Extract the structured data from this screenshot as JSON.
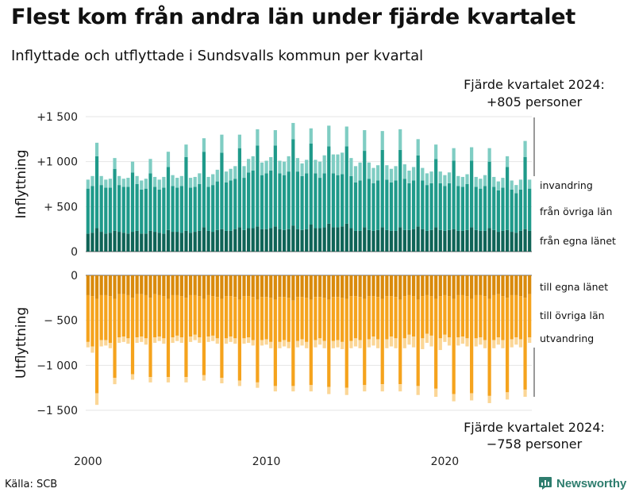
{
  "header": {
    "title": "Flest kom från andra län under fjärde kvartalet",
    "subtitle": "Inflyttade och utflyttade i Sundsvalls kommun per kvartal"
  },
  "footer": {
    "source": "Källa: SCB",
    "brand": "Newsworthy"
  },
  "chart_data": {
    "type": "bar",
    "stacked": true,
    "x_start": "2000 Q1",
    "x_ticks": [
      "2000",
      "2010",
      "2020"
    ],
    "top_panel": {
      "ylabel": "Inflyttning",
      "yticks": [
        "+1 500",
        "+1 000",
        "+ 500",
        "0"
      ],
      "tick_values": [
        1500,
        1000,
        500,
        0
      ],
      "ylim": [
        0,
        1500
      ],
      "callout": [
        "Fjärde kvartalet 2024:",
        "+805 personer"
      ],
      "series": [
        {
          "name": "från egna länet",
          "color": "#0f6457",
          "values": [
            200,
            210,
            260,
            220,
            200,
            210,
            230,
            220,
            210,
            200,
            220,
            230,
            200,
            200,
            230,
            220,
            210,
            200,
            240,
            220,
            220,
            210,
            230,
            210,
            220,
            230,
            270,
            230,
            220,
            240,
            250,
            230,
            230,
            250,
            270,
            240,
            260,
            260,
            280,
            250,
            250,
            260,
            280,
            250,
            240,
            250,
            290,
            250,
            240,
            250,
            300,
            260,
            260,
            270,
            310,
            270,
            270,
            280,
            310,
            260,
            230,
            230,
            270,
            240,
            230,
            240,
            270,
            240,
            230,
            230,
            270,
            240,
            240,
            250,
            280,
            250,
            230,
            240,
            270,
            240,
            230,
            240,
            250,
            230,
            230,
            240,
            270,
            240,
            230,
            230,
            260,
            240,
            220,
            230,
            240,
            220,
            210,
            230,
            250,
            230
          ]
        },
        {
          "name": "från övriga län",
          "color": "#1f9a8a",
          "values": [
            500,
            520,
            800,
            520,
            510,
            500,
            690,
            520,
            510,
            520,
            660,
            520,
            490,
            500,
            640,
            500,
            480,
            510,
            700,
            510,
            490,
            520,
            820,
            500,
            500,
            520,
            840,
            490,
            520,
            540,
            850,
            540,
            560,
            560,
            880,
            580,
            620,
            640,
            900,
            600,
            620,
            640,
            900,
            620,
            610,
            640,
            960,
            640,
            600,
            620,
            900,
            610,
            560,
            600,
            860,
            600,
            580,
            580,
            860,
            580,
            540,
            560,
            850,
            570,
            530,
            550,
            860,
            560,
            540,
            560,
            860,
            570,
            520,
            540,
            790,
            540,
            510,
            520,
            760,
            520,
            500,
            520,
            760,
            500,
            490,
            510,
            740,
            480,
            470,
            500,
            740,
            480,
            460,
            480,
            700,
            470,
            440,
            460,
            800,
            470
          ]
        },
        {
          "name": "invandring",
          "color": "#7fcdc3",
          "values": [
            100,
            110,
            150,
            100,
            90,
            100,
            120,
            100,
            90,
            100,
            120,
            90,
            100,
            110,
            160,
            110,
            110,
            120,
            170,
            120,
            110,
            110,
            140,
            110,
            110,
            120,
            150,
            110,
            120,
            130,
            200,
            120,
            130,
            140,
            150,
            130,
            150,
            160,
            180,
            140,
            140,
            150,
            170,
            140,
            150,
            170,
            180,
            150,
            140,
            150,
            170,
            150,
            180,
            200,
            230,
            210,
            230,
            240,
            220,
            200,
            180,
            200,
            230,
            180,
            170,
            170,
            210,
            160,
            150,
            160,
            230,
            160,
            140,
            150,
            180,
            140,
            130,
            130,
            160,
            130,
            120,
            120,
            140,
            110,
            110,
            110,
            150,
            110,
            110,
            120,
            150,
            110,
            100,
            110,
            120,
            100,
            90,
            110,
            180,
            100
          ]
        }
      ]
    },
    "bottom_panel": {
      "ylabel": "Utflyttning",
      "yticks": [
        "0",
        "− 500",
        "−1 000",
        "−1 500"
      ],
      "tick_values": [
        0,
        -500,
        -1000,
        -1500
      ],
      "ylim": [
        -1500,
        0
      ],
      "callout": [
        "Fjärde kvartalet 2024:",
        "−758 personer"
      ],
      "series": [
        {
          "name": "till egna länet",
          "color": "#d98a0c",
          "values": [
            220,
            230,
            260,
            220,
            220,
            230,
            260,
            210,
            210,
            220,
            250,
            210,
            210,
            220,
            250,
            210,
            220,
            230,
            260,
            220,
            220,
            230,
            250,
            220,
            220,
            230,
            260,
            220,
            230,
            240,
            260,
            230,
            230,
            240,
            270,
            230,
            230,
            240,
            270,
            240,
            240,
            250,
            270,
            240,
            240,
            250,
            280,
            240,
            240,
            250,
            270,
            240,
            240,
            250,
            270,
            240,
            240,
            250,
            260,
            230,
            230,
            240,
            260,
            230,
            230,
            240,
            260,
            230,
            230,
            240,
            270,
            230,
            220,
            230,
            270,
            230,
            220,
            230,
            260,
            230,
            220,
            230,
            260,
            220,
            220,
            230,
            260,
            220,
            220,
            230,
            260,
            220,
            210,
            230,
            250,
            220,
            220,
            230,
            250,
            210
          ]
        },
        {
          "name": "till övriga län",
          "color": "#f5a31d",
          "values": [
            520,
            560,
            1050,
            500,
            500,
            520,
            880,
            480,
            470,
            480,
            850,
            480,
            470,
            480,
            880,
            480,
            460,
            470,
            870,
            470,
            450,
            460,
            880,
            460,
            440,
            460,
            850,
            460,
            440,
            460,
            880,
            470,
            450,
            460,
            900,
            470,
            460,
            480,
            920,
            480,
            470,
            490,
            960,
            500,
            480,
            490,
            950,
            490,
            470,
            490,
            950,
            480,
            460,
            480,
            970,
            490,
            480,
            490,
            990,
            500,
            470,
            480,
            960,
            480,
            450,
            470,
            950,
            480,
            450,
            460,
            940,
            470,
            440,
            450,
            960,
            470,
            430,
            440,
            1000,
            470,
            440,
            460,
            1060,
            470,
            460,
            470,
            1050,
            480,
            470,
            490,
            1080,
            500,
            480,
            490,
            1050,
            490,
            470,
            480,
            1020,
            480
          ]
        },
        {
          "name": "utvandring",
          "color": "#fbd696",
          "values": [
            60,
            70,
            130,
            70,
            60,
            60,
            70,
            60,
            60,
            60,
            60,
            60,
            60,
            70,
            60,
            60,
            50,
            60,
            60,
            60,
            60,
            60,
            60,
            60,
            60,
            60,
            60,
            60,
            60,
            60,
            60,
            60,
            60,
            60,
            60,
            60,
            60,
            60,
            60,
            60,
            60,
            70,
            60,
            70,
            70,
            70,
            60,
            70,
            70,
            70,
            70,
            80,
            70,
            80,
            80,
            80,
            80,
            80,
            80,
            80,
            90,
            90,
            70,
            90,
            100,
            100,
            80,
            100,
            110,
            110,
            80,
            110,
            110,
            120,
            100,
            120,
            100,
            120,
            90,
            130,
            80,
            90,
            80,
            90,
            80,
            90,
            80,
            90,
            80,
            90,
            80,
            90,
            80,
            90,
            80,
            90,
            80,
            90,
            80,
            60
          ]
        }
      ]
    }
  }
}
